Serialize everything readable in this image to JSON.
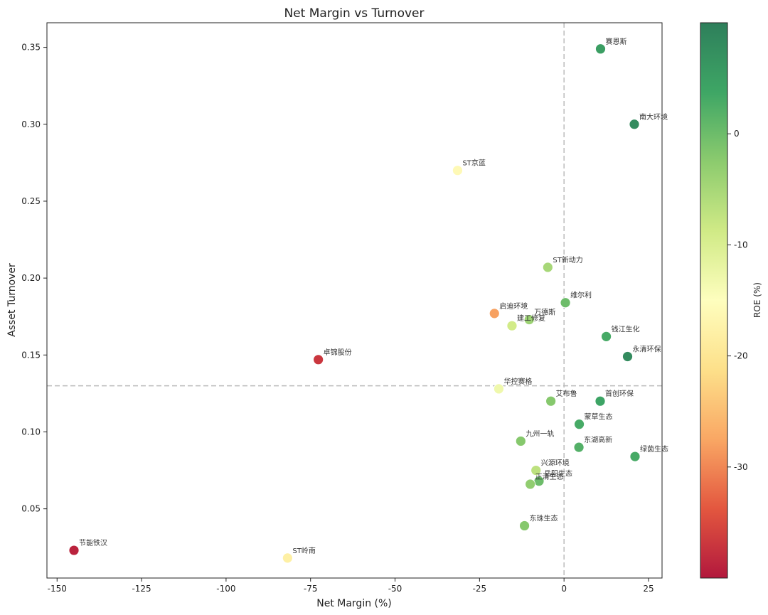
{
  "chart_data": {
    "type": "scatter",
    "title": "Net Margin vs Turnover",
    "xlabel": "Net Margin (%)",
    "ylabel": "Asset Turnover",
    "xlim": [
      -153,
      29
    ],
    "ylim": [
      0.005,
      0.366
    ],
    "xticks": [
      -150,
      -125,
      -100,
      -75,
      -50,
      -25,
      0,
      25
    ],
    "yticks": [
      0.05,
      0.1,
      0.15,
      0.2,
      0.25,
      0.3,
      0.35
    ],
    "reference_lines": {
      "x": 0,
      "y": 0.13,
      "style": "dashed",
      "color": "#bbbbbb"
    },
    "colorbar": {
      "label": "ROE (%)",
      "range": [
        -40,
        10
      ],
      "ticks": [
        0,
        -10,
        -20,
        -30
      ],
      "colormap": [
        "#b2183d",
        "#e3573f",
        "#f9a764",
        "#fde08a",
        "#fefebe",
        "#d0ea86",
        "#8ccb6e",
        "#3ea665",
        "#2e7f5b"
      ]
    },
    "grid": false,
    "points": [
      {
        "name": "赛恩斯",
        "x": 10.8,
        "y": 0.349,
        "roe": 5
      },
      {
        "name": "南大环境",
        "x": 20.8,
        "y": 0.3,
        "roe": 8
      },
      {
        "name": "ST京蓝",
        "x": -31.5,
        "y": 0.27,
        "roe": -16
      },
      {
        "name": "ST新动力",
        "x": -4.8,
        "y": 0.207,
        "roe": -5
      },
      {
        "name": "维尔利",
        "x": 0.4,
        "y": 0.184,
        "roe": 0
      },
      {
        "name": "启迪环境",
        "x": -20.6,
        "y": 0.177,
        "roe": -28
      },
      {
        "name": "万德斯",
        "x": -10.3,
        "y": 0.173,
        "roe": -4
      },
      {
        "name": "建工修复",
        "x": -15.4,
        "y": 0.169,
        "roe": -9
      },
      {
        "name": "钱江生化",
        "x": 12.5,
        "y": 0.162,
        "roe": 3
      },
      {
        "name": "永清环保",
        "x": 18.8,
        "y": 0.149,
        "roe": 8
      },
      {
        "name": "卓锦股份",
        "x": -72.7,
        "y": 0.147,
        "roe": -37
      },
      {
        "name": "华控赛格",
        "x": -19.3,
        "y": 0.128,
        "roe": -13
      },
      {
        "name": "艾布鲁",
        "x": -3.9,
        "y": 0.12,
        "roe": -2
      },
      {
        "name": "首创环保",
        "x": 10.7,
        "y": 0.12,
        "roe": 4
      },
      {
        "name": "蒙草生态",
        "x": 4.5,
        "y": 0.105,
        "roe": 3
      },
      {
        "name": "九州一轨",
        "x": -12.8,
        "y": 0.094,
        "roe": -2
      },
      {
        "name": "东湖高新",
        "x": 4.4,
        "y": 0.09,
        "roe": 2
      },
      {
        "name": "绿茵生态",
        "x": 21.0,
        "y": 0.084,
        "roe": 3
      },
      {
        "name": "兴源环境",
        "x": -8.3,
        "y": 0.075,
        "roe": -7
      },
      {
        "name": "岳阳生态",
        "x": -7.4,
        "y": 0.068,
        "roe": 0
      },
      {
        "name": "正清生态",
        "x": -10.0,
        "y": 0.066,
        "roe": -3
      },
      {
        "name": "东珠生态",
        "x": -11.7,
        "y": 0.039,
        "roe": -2
      },
      {
        "name": "节能铁汉",
        "x": -145.0,
        "y": 0.023,
        "roe": -39
      },
      {
        "name": "ST岭南",
        "x": -81.8,
        "y": 0.018,
        "roe": -18
      }
    ]
  }
}
